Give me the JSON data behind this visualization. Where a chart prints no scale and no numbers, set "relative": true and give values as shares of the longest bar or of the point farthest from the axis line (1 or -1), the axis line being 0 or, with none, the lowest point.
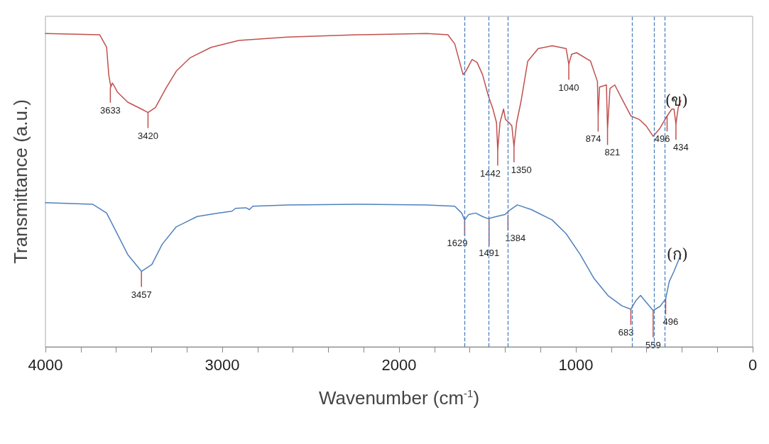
{
  "chart_data": {
    "type": "line",
    "relative": true,
    "xlabel": "Wavenumber (cm$^{-1}$)",
    "ylabel": "Transmittance (a.u.)",
    "xlim": [
      4000,
      0
    ],
    "xticks": [
      4000,
      {
        "value": 3800,
        "label": null
      },
      {
        "value": 3600,
        "label": null
      },
      {
        "value": 3400,
        "label": null
      },
      {
        "value": 3200,
        "label": null
      },
      3000,
      {
        "value": 2800,
        "label": null
      },
      {
        "value": 2600,
        "label": null
      },
      {
        "value": 2400,
        "label": null
      },
      {
        "value": 2200,
        "label": null
      },
      2000,
      {
        "value": 1800,
        "label": null
      },
      {
        "value": 1600,
        "label": null
      },
      {
        "value": 1400,
        "label": null
      },
      {
        "value": 1200,
        "label": null
      },
      1000,
      {
        "value": 800,
        "label": null
      },
      {
        "value": 600,
        "label": null
      },
      {
        "value": 400,
        "label": null
      },
      {
        "value": 200,
        "label": null
      },
      0
    ],
    "tick_labels": "x",
    "grid": false,
    "marker": "none",
    "line_style": "solid",
    "series": [
      {
        "name": "(ข)",
        "color": "#c0504d",
        "x": [
          4000,
          3693,
          3654,
          3642,
          3630,
          3622,
          3614,
          3594,
          3535,
          3457,
          3420,
          3378,
          3319,
          3260,
          3181,
          3063,
          2906,
          2630,
          2236,
          1843,
          1724,
          1685,
          1654,
          1638,
          1622,
          1587,
          1559,
          1528,
          1496,
          1469,
          1449,
          1442,
          1429,
          1409,
          1398,
          1378,
          1362,
          1350,
          1335,
          1311,
          1272,
          1213,
          1134,
          1055,
          1040,
          1024,
          996,
          917,
          878,
          874,
          866,
          827,
          821,
          807,
          780,
          740,
          689,
          642,
          602,
          563,
          524,
          484,
          457,
          445,
          434,
          421,
          406
        ],
        "values": [
          1.0,
          0.996,
          0.956,
          0.869,
          0.829,
          0.842,
          0.836,
          0.814,
          0.781,
          0.759,
          0.748,
          0.764,
          0.825,
          0.88,
          0.923,
          0.956,
          0.978,
          0.989,
          0.996,
          1.0,
          0.996,
          0.967,
          0.902,
          0.869,
          0.88,
          0.917,
          0.908,
          0.869,
          0.803,
          0.759,
          0.716,
          0.628,
          0.716,
          0.759,
          0.726,
          0.716,
          0.705,
          0.639,
          0.716,
          0.781,
          0.912,
          0.952,
          0.961,
          0.952,
          0.902,
          0.934,
          0.939,
          0.912,
          0.847,
          0.737,
          0.829,
          0.836,
          0.694,
          0.825,
          0.836,
          0.792,
          0.737,
          0.726,
          0.705,
          0.672,
          0.698,
          0.737,
          0.759,
          0.759,
          0.711,
          0.764,
          0.786
        ]
      },
      {
        "name": "(ก)",
        "color": "#4f81bd",
        "x": [
          4000,
          3732,
          3654,
          3594,
          3535,
          3457,
          3398,
          3339,
          3260,
          3142,
          3024,
          2945,
          2925,
          2866,
          2846,
          2827,
          2630,
          2236,
          1843,
          1685,
          1646,
          1629,
          1607,
          1567,
          1528,
          1496,
          1449,
          1402,
          1370,
          1331,
          1252,
          1134,
          1055,
          976,
          898,
          819,
          740,
          689,
          661,
          634,
          602,
          563,
          524,
          492,
          472,
          445,
          406
        ],
        "values": [
          0.46,
          0.455,
          0.427,
          0.361,
          0.295,
          0.241,
          0.263,
          0.328,
          0.383,
          0.416,
          0.427,
          0.433,
          0.442,
          0.444,
          0.438,
          0.449,
          0.453,
          0.455,
          0.453,
          0.449,
          0.427,
          0.405,
          0.422,
          0.427,
          0.416,
          0.409,
          0.416,
          0.422,
          0.438,
          0.453,
          0.438,
          0.405,
          0.361,
          0.295,
          0.219,
          0.164,
          0.131,
          0.12,
          0.147,
          0.164,
          0.142,
          0.116,
          0.129,
          0.153,
          0.208,
          0.241,
          0.295
        ]
      }
    ],
    "ref_lines": [
      {
        "axis": "x",
        "value": 1629,
        "color": "#4f81bd",
        "line_style": "dashed"
      },
      {
        "axis": "x",
        "value": 1491,
        "color": "#4f81bd",
        "line_style": "dashed"
      },
      {
        "axis": "x",
        "value": 1384,
        "color": "#4f81bd",
        "line_style": "dashed"
      },
      {
        "axis": "x",
        "value": 683,
        "color": "#4f81bd",
        "line_style": "dashed"
      },
      {
        "axis": "x",
        "value": 559,
        "color": "#4f81bd",
        "line_style": "dashed"
      },
      {
        "axis": "x",
        "value": 496,
        "color": "#4f81bd",
        "line_style": "dashed"
      }
    ],
    "annotations": [
      {
        "text": "3633",
        "x": 3633,
        "y": 0.829
      },
      {
        "text": "3420",
        "x": 3420,
        "y": 0.748
      },
      {
        "text": "1442",
        "x": 1442,
        "y": 0.628
      },
      {
        "text": "1350",
        "x": 1350,
        "y": 0.639
      },
      {
        "text": "1040",
        "x": 1040,
        "y": 0.902
      },
      {
        "text": "874",
        "x": 874,
        "y": 0.737
      },
      {
        "text": "821",
        "x": 821,
        "y": 0.694
      },
      {
        "text": "496",
        "x": 484,
        "y": 0.737
      },
      {
        "text": "434",
        "x": 434,
        "y": 0.711
      },
      {
        "text": "3457",
        "x": 3457,
        "y": 0.241
      },
      {
        "text": "1629",
        "x": 1629,
        "y": 0.405
      },
      {
        "text": "1491",
        "x": 1491,
        "y": 0.409
      },
      {
        "text": "1384",
        "x": 1384,
        "y": 0.422
      },
      {
        "text": "683",
        "x": 689,
        "y": 0.12
      },
      {
        "text": "559",
        "x": 563,
        "y": 0.116
      },
      {
        "text": "496",
        "x": 492,
        "y": 0.153
      }
    ]
  }
}
